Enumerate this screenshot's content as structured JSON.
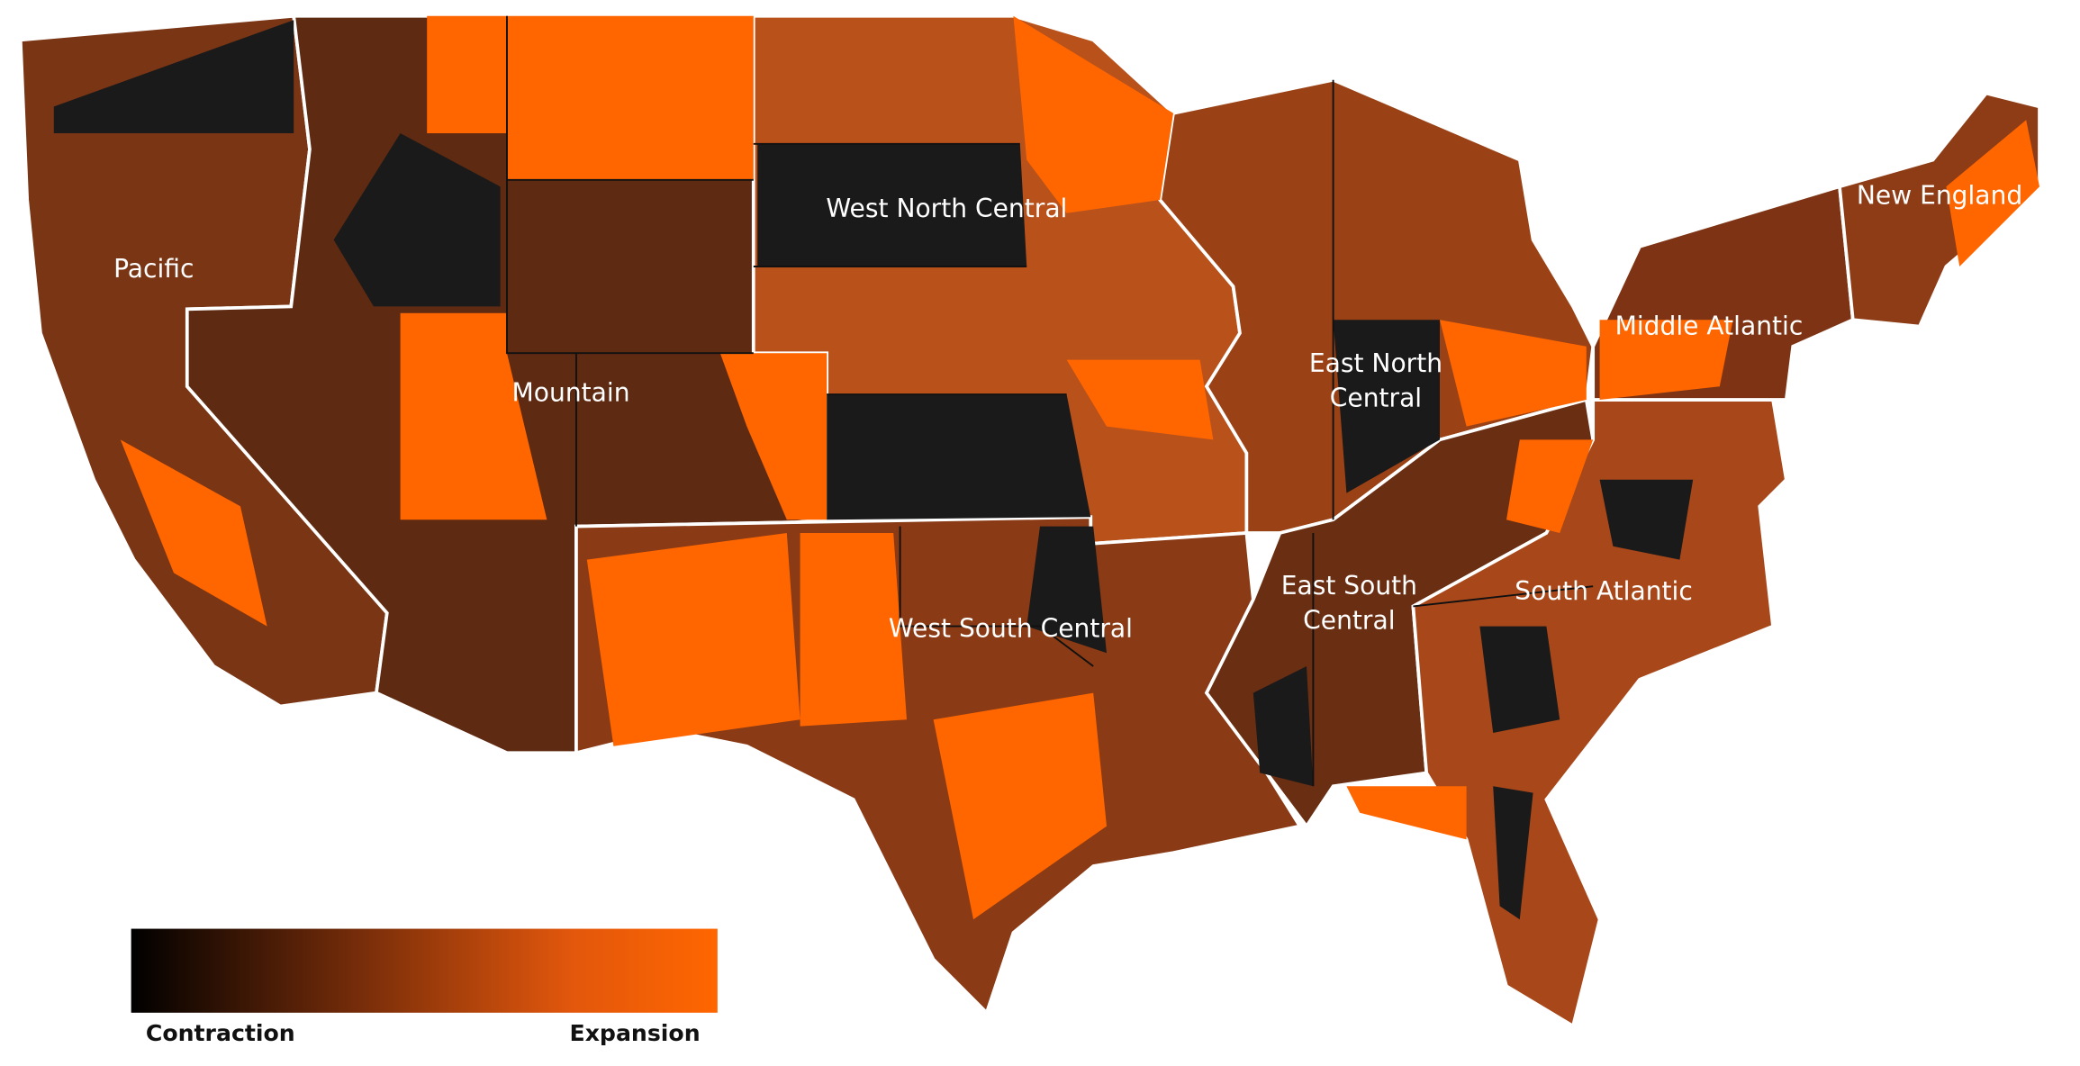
{
  "map": {
    "regions": [
      {
        "lines": [
          "Pacific"
        ]
      },
      {
        "lines": [
          "Mountain"
        ]
      },
      {
        "lines": [
          "West North Central"
        ]
      },
      {
        "lines": [
          "West South Central"
        ]
      },
      {
        "lines": [
          "East North",
          "Central"
        ]
      },
      {
        "lines": [
          "East South",
          "Central"
        ]
      },
      {
        "lines": [
          "South Atlantic"
        ]
      },
      {
        "lines": [
          "Middle Atlantic"
        ]
      },
      {
        "lines": [
          "New England"
        ]
      }
    ],
    "legend": {
      "low": "Contraction",
      "high": "Expansion"
    }
  }
}
